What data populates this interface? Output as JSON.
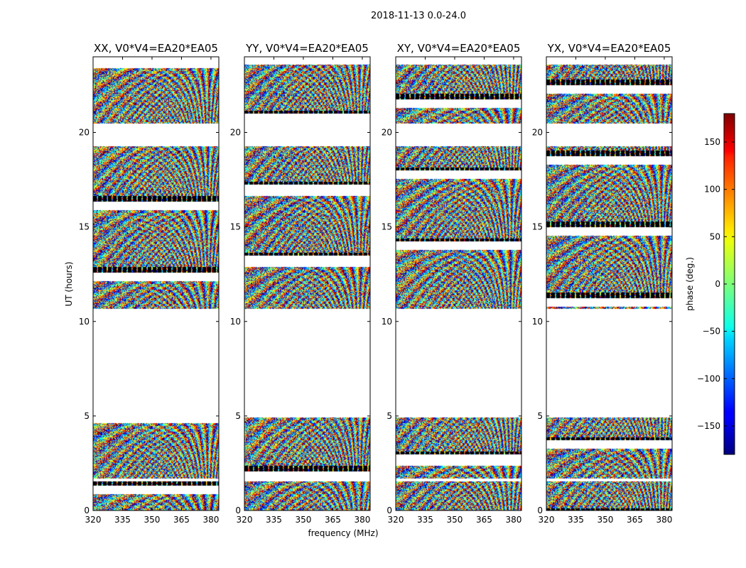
{
  "figure": {
    "suptitle": "2018-11-13 0.0-24.0"
  },
  "chart_data": {
    "type": "heatmap",
    "xlabel": "frequency (MHz)",
    "ylabel": "UT (hours)",
    "x_ticks": [
      320,
      335,
      350,
      365,
      380
    ],
    "y_ticks": [
      0,
      5,
      10,
      15,
      20
    ],
    "xlim": [
      320,
      384
    ],
    "ylim": [
      0,
      24
    ],
    "panels": [
      {
        "title": "XX, V0*V4=EA20*EA05"
      },
      {
        "title": "YY, V0*V4=EA20*EA05"
      },
      {
        "title": "XY, V0*V4=EA20*EA05"
      },
      {
        "title": "YX, V0*V4=EA20*EA05"
      }
    ],
    "data_segments_ut": [
      [
        0,
        1.55
      ],
      [
        1.7,
        4.95
      ],
      [
        10.7,
        19.3
      ],
      [
        20.5,
        23.6
      ]
    ],
    "colorbar": {
      "label": "phase (deg.)",
      "ticks": [
        150,
        100,
        50,
        0,
        -50,
        -100,
        -150
      ],
      "range": [
        -180,
        180
      ],
      "colormap": "jet"
    }
  }
}
